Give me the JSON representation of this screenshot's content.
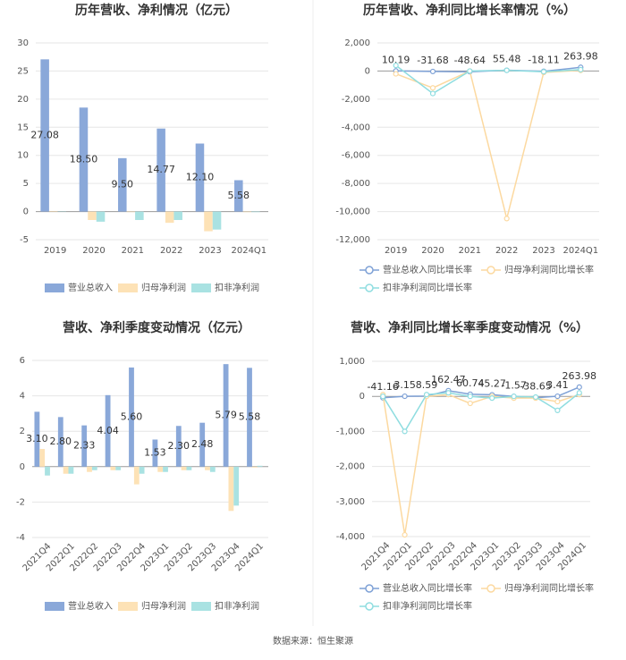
{
  "chart_data": [
    {
      "type": "bar",
      "title": "历年营收、净利情况（亿元）",
      "categories": [
        "2019",
        "2020",
        "2021",
        "2022",
        "2023",
        "2024Q1"
      ],
      "series": [
        {
          "name": "营业总收入",
          "color": "#8aa8d9",
          "values": [
            27.08,
            18.5,
            9.5,
            14.77,
            12.1,
            5.58
          ],
          "value_labels": [
            "27.08",
            "18.50",
            "9.50",
            "14.77",
            "12.10",
            "5.58"
          ]
        },
        {
          "name": "归母净利润",
          "color": "#fde2b6",
          "values": [
            0.1,
            -1.5,
            -0.1,
            -2.0,
            -3.5,
            -0.1
          ]
        },
        {
          "name": "扣非净利润",
          "color": "#a9e2e2",
          "values": [
            0.05,
            -1.8,
            -1.5,
            -1.5,
            -3.2,
            -0.1
          ]
        }
      ],
      "ylim": [
        -5,
        30
      ],
      "yticks": [
        -5,
        0,
        5,
        10,
        15,
        20,
        25,
        30
      ],
      "grid": true
    },
    {
      "type": "line",
      "title": "历年营收、净利同比增长率情况（%）",
      "categories": [
        "2019",
        "2020",
        "2021",
        "2022",
        "2023",
        "2024Q1"
      ],
      "series": [
        {
          "name": "营业总收入同比增长率",
          "color": "#7ea1d6",
          "values": [
            10.19,
            -31.68,
            -48.64,
            55.48,
            -18.11,
            263.98
          ],
          "value_labels": [
            "10.19",
            "-31.68",
            "-48.64",
            "55.48",
            "-18.11",
            "263.98"
          ]
        },
        {
          "name": "归母净利润同比增长率",
          "color": "#fcd9a0",
          "values": [
            -200,
            -1200,
            0,
            -10500,
            -100,
            50
          ]
        },
        {
          "name": "扣非净利润同比增长率",
          "color": "#8fdde0",
          "values": [
            400,
            -1600,
            0,
            50,
            -50,
            100
          ]
        }
      ],
      "ylim": [
        -12000,
        2000
      ],
      "yticks": [
        {
          "value": -12000,
          "label": "-12,000"
        },
        {
          "value": -10000,
          "label": "-10,000"
        },
        {
          "value": -8000,
          "label": "-8,000"
        },
        {
          "value": -6000,
          "label": "-6,000"
        },
        {
          "value": -4000,
          "label": "-4,000"
        },
        {
          "value": -2000,
          "label": "-2,000"
        },
        0,
        {
          "value": 2000,
          "label": "2,000"
        }
      ],
      "grid": true
    },
    {
      "type": "bar",
      "title": "营收、净利季度变动情况（亿元）",
      "categories": [
        "2021Q4",
        "2022Q1",
        "2022Q2",
        "2022Q3",
        "2022Q4",
        "2023Q1",
        "2023Q2",
        "2023Q3",
        "2023Q4",
        "2024Q1"
      ],
      "series": [
        {
          "name": "营业总收入",
          "color": "#8aa8d9",
          "values": [
            3.1,
            2.8,
            2.33,
            4.04,
            5.6,
            1.53,
            2.3,
            2.48,
            5.79,
            5.58
          ],
          "value_labels": [
            "3.10",
            "2.80",
            "2.33",
            "4.04",
            "5.60",
            "1.53",
            "2.30",
            "2.48",
            "5.79",
            "5.58"
          ]
        },
        {
          "name": "归母净利润",
          "color": "#fde2b6",
          "values": [
            1.0,
            -0.4,
            -0.3,
            -0.2,
            -1.0,
            -0.3,
            -0.2,
            -0.2,
            -2.5,
            -0.05
          ]
        },
        {
          "name": "扣非净利润",
          "color": "#a9e2e2",
          "values": [
            -0.5,
            -0.4,
            -0.2,
            -0.2,
            -0.4,
            -0.3,
            -0.2,
            -0.3,
            -2.2,
            0.05
          ]
        }
      ],
      "ylim": [
        -4,
        6
      ],
      "yticks": [
        -4,
        -2,
        0,
        2,
        4,
        6
      ],
      "grid": true
    },
    {
      "type": "line",
      "title": "营收、净利同比增长率季度变动情况（%）",
      "categories": [
        "2021Q4",
        "2022Q1",
        "2022Q2",
        "2022Q3",
        "2022Q4",
        "2023Q1",
        "2023Q2",
        "2023Q3",
        "2023Q4",
        "2024Q1"
      ],
      "series": [
        {
          "name": "营业总收入同比增长率",
          "color": "#7ea1d6",
          "values": [
            -41.16,
            3.15,
            8.59,
            162.47,
            60.74,
            45.27,
            -1.57,
            -38.65,
            3.41,
            263.98
          ],
          "value_labels": [
            "-41.16",
            "3.15",
            "8.59",
            "162.47",
            "60.74",
            "45.27",
            "-1.57",
            "-38.65",
            "3.41",
            "263.98"
          ]
        },
        {
          "name": "归母净利润同比增长率",
          "color": "#fcd9a0",
          "values": [
            50,
            -3950,
            0,
            50,
            -200,
            0,
            -50,
            -50,
            -150,
            50
          ]
        },
        {
          "name": "扣非净利润同比增长率",
          "color": "#8fdde0",
          "values": [
            0,
            -1000,
            50,
            100,
            0,
            -50,
            0,
            -20,
            -400,
            100
          ]
        }
      ],
      "ylim": [
        -4000,
        1000
      ],
      "yticks": [
        {
          "value": -4000,
          "label": "-4,000"
        },
        {
          "value": -3000,
          "label": "-3,000"
        },
        {
          "value": -2000,
          "label": "-2,000"
        },
        {
          "value": -1000,
          "label": "-1,000"
        },
        0,
        {
          "value": 1000,
          "label": "1,000"
        }
      ],
      "grid": true
    }
  ],
  "source": "数据来源：恒生聚源"
}
